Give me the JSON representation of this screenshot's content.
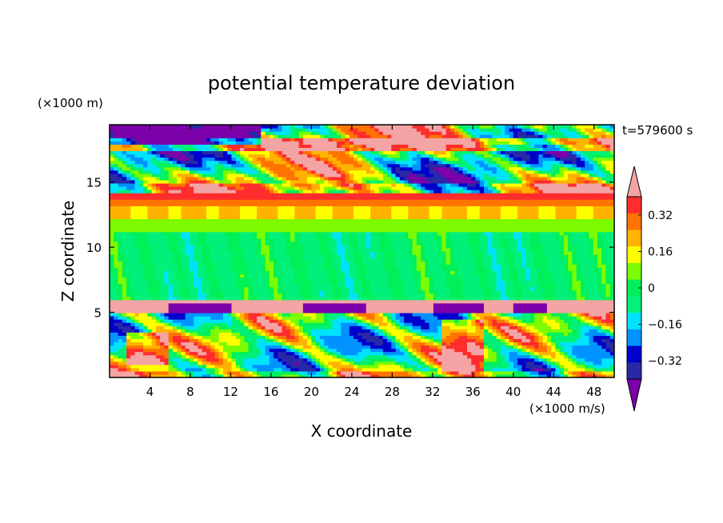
{
  "chart_data": {
    "type": "heatmap",
    "title": "potential temperature deviation",
    "xlabel": "X coordinate",
    "ylabel": "Z coordinate",
    "x_unit": "(×1000 m/s)",
    "y_unit": "(×1000 m)",
    "time_label": "t=579600 s",
    "xlim": [
      0,
      50
    ],
    "ylim": [
      0,
      19.4
    ],
    "x_ticks": [
      4,
      8,
      12,
      16,
      20,
      24,
      28,
      32,
      36,
      40,
      44,
      48
    ],
    "y_ticks": [
      5,
      10,
      15
    ],
    "colorbar": {
      "levels": [
        -0.48,
        -0.4,
        -0.32,
        -0.24,
        -0.16,
        -0.08,
        0,
        0.08,
        0.16,
        0.24,
        0.32,
        0.4,
        0.48
      ],
      "tick_labels": [
        "0.32",
        "0.16",
        "0",
        "-0.16",
        "-0.32"
      ],
      "tick_values": [
        0.32,
        0.16,
        0,
        -0.16,
        -0.32
      ],
      "colors": [
        "#7b00a9",
        "#2929a6",
        "#0000cd",
        "#0093ff",
        "#00e3ff",
        "#00f07a",
        "#00f05a",
        "#7dfb00",
        "#ffff00",
        "#ffb300",
        "#ff7300",
        "#ff2d2d",
        "#f4a4a4"
      ]
    },
    "layers": [
      {
        "z_range": [
          0,
          5
        ],
        "description_value": "mixed",
        "dominant_value": 0.0
      },
      {
        "z_range": [
          5,
          6
        ],
        "dominant_value": 0.5
      },
      {
        "z_range": [
          6,
          12.2
        ],
        "dominant_value": -0.04
      },
      {
        "z_range": [
          12.2,
          13.2
        ],
        "dominant_value": 0.2
      },
      {
        "z_range": [
          13.2,
          14.2
        ],
        "dominant_value": 0.35
      },
      {
        "z_range": [
          14.2,
          19.4
        ],
        "dominant_value": "mixed"
      }
    ]
  }
}
